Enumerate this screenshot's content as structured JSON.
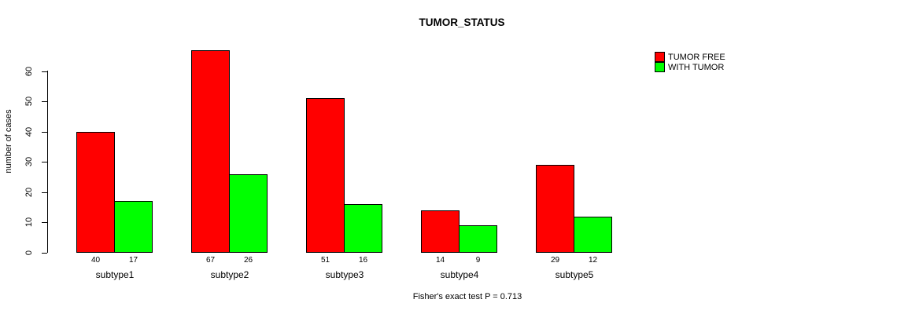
{
  "chart_data": {
    "type": "bar",
    "title": "TUMOR_STATUS",
    "ylabel": "number of cases",
    "xlabel": "",
    "categories": [
      "subtype1",
      "subtype2",
      "subtype3",
      "subtype4",
      "subtype5"
    ],
    "series": [
      {
        "name": "TUMOR FREE",
        "color": "#FF0000",
        "values": [
          40,
          67,
          51,
          14,
          29
        ]
      },
      {
        "name": "WITH TUMOR",
        "color": "#00FF00",
        "values": [
          17,
          26,
          16,
          9,
          12
        ]
      }
    ],
    "yticks": [
      0,
      10,
      20,
      30,
      40,
      50,
      60
    ],
    "ylim": [
      0,
      67
    ],
    "grid": false,
    "legend_position": "top-right",
    "bar_value_labels": true,
    "caption": "Fisher's exact test P = 0.713",
    "colors": {
      "background": "#FFFFFF",
      "axis": "#000000",
      "text": "#000000"
    }
  }
}
